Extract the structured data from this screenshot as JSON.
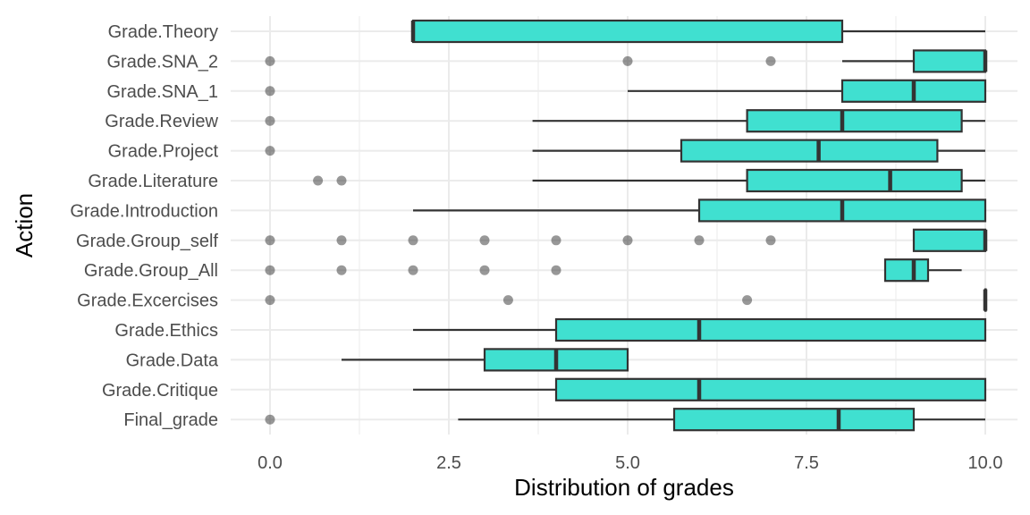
{
  "chart_data": {
    "type": "boxplot",
    "orientation": "horizontal",
    "title": "",
    "xlabel": "Distribution of grades",
    "ylabel": "Action",
    "xlim": [
      -0.55,
      10.45
    ],
    "xticks": [
      0.0,
      2.5,
      5.0,
      7.5,
      10.0
    ],
    "xtick_labels": [
      "0.0",
      "2.5",
      "5.0",
      "7.5",
      "10.0"
    ],
    "grid": true,
    "legend": "none",
    "colors": {
      "box_fill": "#40E0D0",
      "box_stroke": "#333333",
      "outlier": "#1a1a1a",
      "grid": "#ebebeb"
    },
    "categories": [
      "Grade.Theory",
      "Grade.SNA_2",
      "Grade.SNA_1",
      "Grade.Review",
      "Grade.Project",
      "Grade.Literature",
      "Grade.Introduction",
      "Grade.Group_self",
      "Grade.Group_All",
      "Grade.Excercises",
      "Grade.Ethics",
      "Grade.Data",
      "Grade.Critique",
      "Final_grade"
    ],
    "boxes": [
      {
        "category": "Grade.Theory",
        "whisker_low": 2.0,
        "q1": 2.0,
        "median": 2.0,
        "q3": 8.0,
        "whisker_high": 10.0,
        "outliers": []
      },
      {
        "category": "Grade.SNA_2",
        "whisker_low": 8.0,
        "q1": 9.0,
        "median": 10.0,
        "q3": 10.0,
        "whisker_high": 10.0,
        "outliers": [
          0,
          5,
          7
        ]
      },
      {
        "category": "Grade.SNA_1",
        "whisker_low": 5.0,
        "q1": 8.0,
        "median": 9.0,
        "q3": 10.0,
        "whisker_high": 10.0,
        "outliers": [
          0
        ]
      },
      {
        "category": "Grade.Review",
        "whisker_low": 3.67,
        "q1": 6.67,
        "median": 8.0,
        "q3": 9.67,
        "whisker_high": 10.0,
        "outliers": [
          0
        ]
      },
      {
        "category": "Grade.Project",
        "whisker_low": 3.67,
        "q1": 5.75,
        "median": 7.67,
        "q3": 9.33,
        "whisker_high": 10.0,
        "outliers": [
          0
        ]
      },
      {
        "category": "Grade.Literature",
        "whisker_low": 3.67,
        "q1": 6.67,
        "median": 8.67,
        "q3": 9.67,
        "whisker_high": 10.0,
        "outliers": [
          0.67,
          1.0
        ]
      },
      {
        "category": "Grade.Introduction",
        "whisker_low": 2.0,
        "q1": 6.0,
        "median": 8.0,
        "q3": 10.0,
        "whisker_high": 10.0,
        "outliers": []
      },
      {
        "category": "Grade.Group_self",
        "whisker_low": 9.0,
        "q1": 9.0,
        "median": 10.0,
        "q3": 10.0,
        "whisker_high": 10.0,
        "outliers": [
          0,
          1,
          2,
          3,
          4,
          5,
          6,
          7
        ]
      },
      {
        "category": "Grade.Group_All",
        "whisker_low": 8.6,
        "q1": 8.6,
        "median": 9.0,
        "q3": 9.2,
        "whisker_high": 9.67,
        "outliers": [
          0,
          1,
          2,
          3,
          4
        ]
      },
      {
        "category": "Grade.Excercises",
        "whisker_low": 10.0,
        "q1": 10.0,
        "median": 10.0,
        "q3": 10.0,
        "whisker_high": 10.0,
        "outliers": [
          0,
          3.33,
          6.67
        ]
      },
      {
        "category": "Grade.Ethics",
        "whisker_low": 2.0,
        "q1": 4.0,
        "median": 6.0,
        "q3": 10.0,
        "whisker_high": 10.0,
        "outliers": []
      },
      {
        "category": "Grade.Data",
        "whisker_low": 1.0,
        "q1": 3.0,
        "median": 4.0,
        "q3": 5.0,
        "whisker_high": 5.0,
        "outliers": []
      },
      {
        "category": "Grade.Critique",
        "whisker_low": 2.0,
        "q1": 4.0,
        "median": 6.0,
        "q3": 10.0,
        "whisker_high": 10.0,
        "outliers": []
      },
      {
        "category": "Final_grade",
        "whisker_low": 2.63,
        "q1": 5.65,
        "median": 7.95,
        "q3": 9.0,
        "whisker_high": 10.0,
        "outliers": [
          0
        ]
      }
    ]
  }
}
